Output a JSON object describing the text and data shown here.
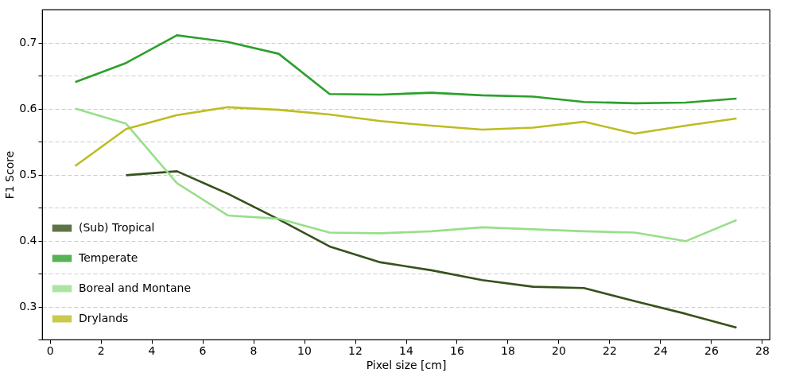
{
  "chart_data": {
    "type": "line",
    "xlabel": "Pixel size [cm]",
    "ylabel": "F1 Score",
    "x": [
      1,
      3,
      5,
      7,
      9,
      11,
      13,
      15,
      17,
      19,
      21,
      23,
      25,
      27
    ],
    "series": [
      {
        "name": "(Sub) Tropical",
        "color": "#35521a",
        "values": [
          null,
          0.499,
          0.505,
          0.471,
          0.432,
          0.391,
          0.367,
          0.355,
          0.34,
          0.33,
          0.328,
          0.308,
          0.289,
          0.268
        ]
      },
      {
        "name": "Temperate",
        "color": "#2ca02c",
        "values": [
          0.64,
          0.669,
          0.711,
          0.701,
          0.683,
          0.622,
          0.621,
          0.624,
          0.62,
          0.618,
          0.61,
          0.608,
          0.609,
          0.615
        ]
      },
      {
        "name": "Boreal and Montane",
        "color": "#98df8a",
        "values": [
          0.6,
          0.577,
          0.487,
          0.438,
          0.433,
          0.412,
          0.411,
          0.414,
          0.42,
          0.417,
          0.414,
          0.412,
          0.399,
          0.431
        ]
      },
      {
        "name": "Drylands",
        "color": "#bcbd22",
        "values": [
          0.513,
          0.569,
          0.59,
          0.602,
          0.598,
          0.591,
          0.581,
          0.574,
          0.568,
          0.571,
          0.58,
          0.562,
          0.574,
          0.585
        ]
      }
    ],
    "xlim": [
      -0.3,
      28.3
    ],
    "xticks": [
      0,
      2,
      4,
      6,
      8,
      10,
      12,
      14,
      16,
      18,
      20,
      22,
      24,
      26,
      28
    ],
    "ylim": [
      0.25,
      0.75
    ],
    "yticks": [
      {
        "value": 0.25,
        "label": null
      },
      0.3,
      {
        "value": 0.35,
        "label": null
      },
      0.4,
      {
        "value": 0.45,
        "label": null
      },
      0.5,
      {
        "value": 0.55,
        "label": null
      },
      0.6,
      {
        "value": 0.65,
        "label": null
      },
      0.7
    ],
    "grid": "y",
    "legend": "bottom left",
    "line_style": "solid",
    "marker": "none"
  }
}
